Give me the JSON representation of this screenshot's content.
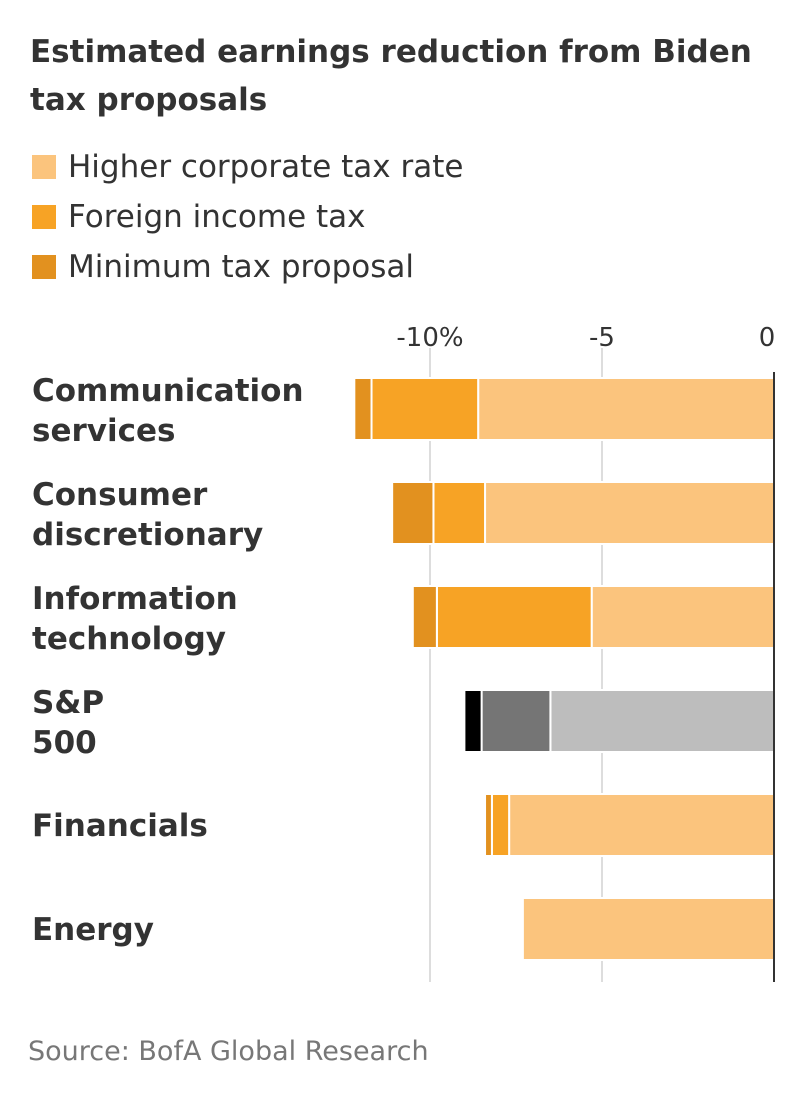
{
  "title": "Estimated earnings reduction from Biden tax proposals",
  "legend": [
    {
      "label": "Higher corporate tax rate",
      "color": "#fbc47d"
    },
    {
      "label": "Foreign income tax",
      "color": "#f7a325"
    },
    {
      "label": "Minimum tax proposal",
      "color": "#e2911f"
    }
  ],
  "source": "Source: BofA Global Research",
  "chart_data": {
    "type": "bar",
    "orientation": "horizontal",
    "stacked": true,
    "title": "Estimated earnings reduction from Biden tax proposals",
    "x_ticks": [
      "-10%",
      "-5",
      "0"
    ],
    "x_tick_values": [
      -10,
      -5,
      0
    ],
    "xlim": [
      -12.5,
      0
    ],
    "grid": true,
    "legend_placement": "top-left",
    "categories": [
      "Communication services",
      "Consumer discretionary",
      "Information technology",
      "S&P 500",
      "Financials",
      "Energy"
    ],
    "series": [
      {
        "name": "Higher corporate tax rate",
        "values": [
          -8.6,
          -8.4,
          -5.3,
          -6.5,
          -7.7,
          -7.3
        ]
      },
      {
        "name": "Foreign income tax",
        "values": [
          -3.1,
          -1.5,
          -4.5,
          -2.0,
          -0.5,
          0
        ]
      },
      {
        "name": "Minimum tax proposal",
        "values": [
          -0.5,
          -1.2,
          -0.7,
          -0.5,
          -0.2,
          0
        ]
      }
    ],
    "highlighted_category": "S&P 500",
    "highlight_colors": [
      "#bdbdbd",
      "#757575",
      "#000000"
    ]
  }
}
